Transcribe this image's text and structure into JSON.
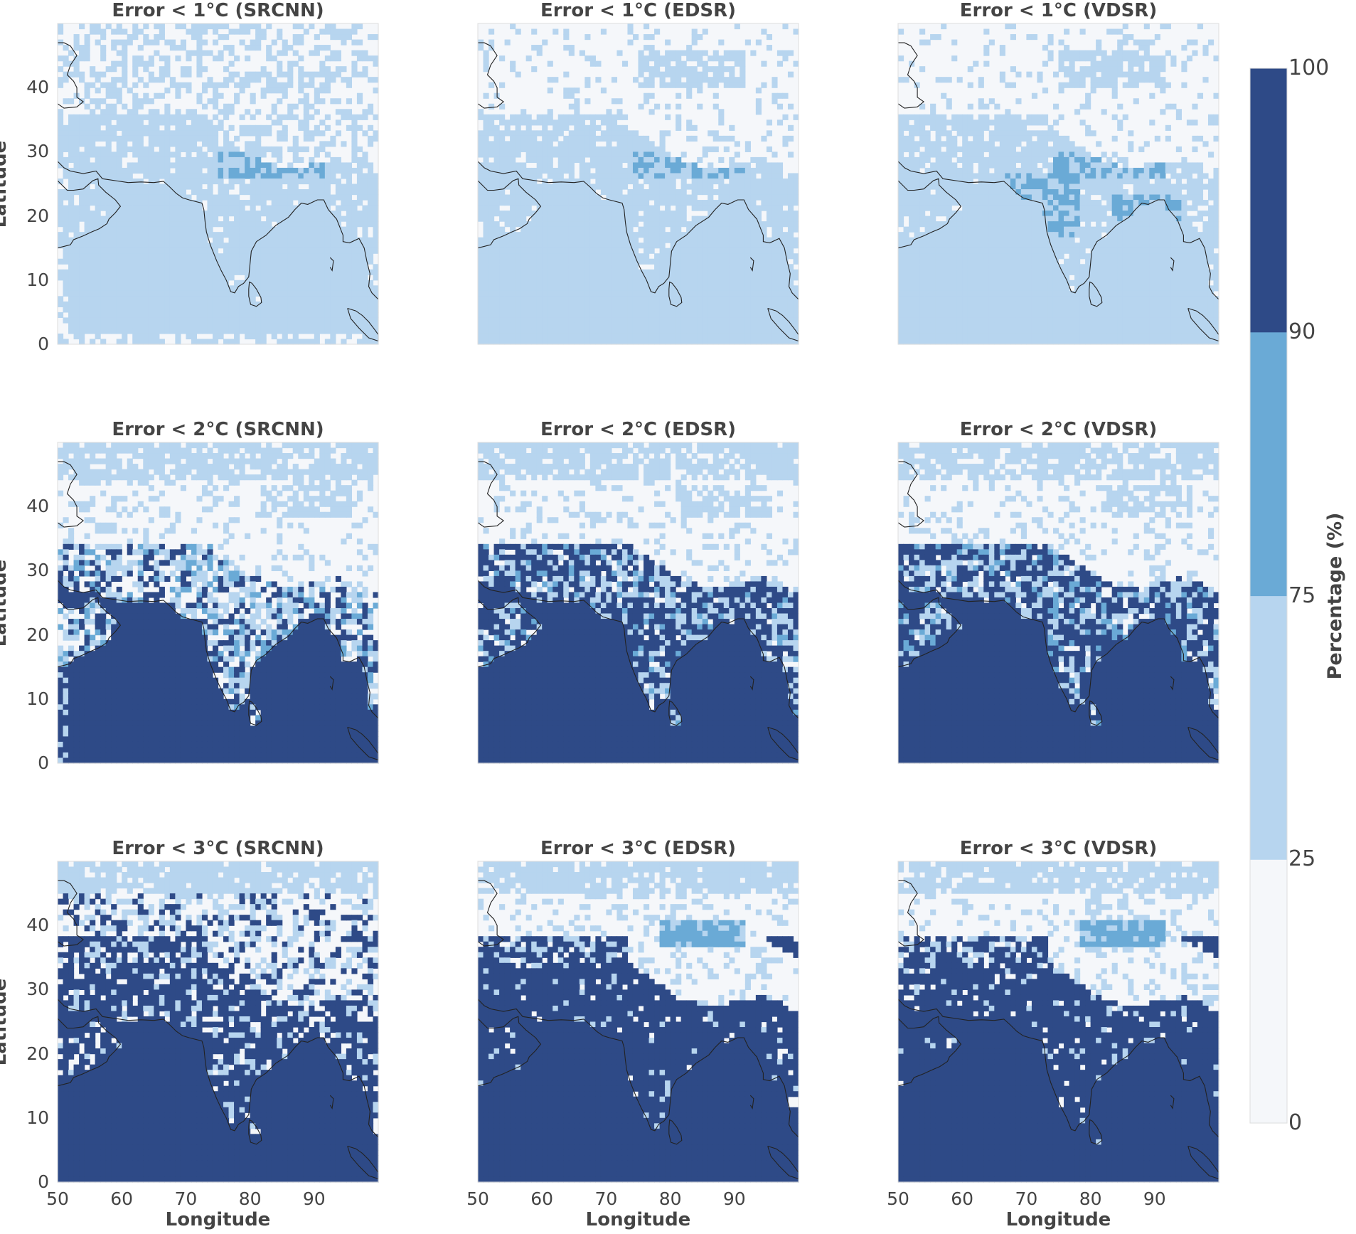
{
  "chart_data": {
    "type": "heatmap",
    "description_of_colormap": "discrete bins",
    "colorbar": {
      "label": "Percentage (%)",
      "bounds": [
        0,
        25,
        75,
        90,
        100
      ],
      "tick_labels": [
        "0",
        "25",
        "75",
        "90",
        "100"
      ],
      "colors": [
        "#f5f7fa",
        "#b7d5ef",
        "#6aaad6",
        "#2e4a87"
      ]
    },
    "xlabel": "Longitude",
    "ylabel": "Latitude",
    "xlim": [
      50,
      100
    ],
    "ylim": [
      0,
      50
    ],
    "xticks": [
      "50",
      "60",
      "70",
      "80",
      "90"
    ],
    "yticks": [
      "0",
      "10",
      "20",
      "30",
      "40"
    ],
    "panels": [
      {
        "title": "Error < 1°C (SRCNN)",
        "threshold": 1,
        "model": "SRCNN"
      },
      {
        "title": "Error < 1°C (EDSR)",
        "threshold": 1,
        "model": "EDSR"
      },
      {
        "title": "Error < 1°C (VDSR)",
        "threshold": 1,
        "model": "VDSR"
      },
      {
        "title": "Error < 2°C (SRCNN)",
        "threshold": 2,
        "model": "SRCNN"
      },
      {
        "title": "Error < 2°C (EDSR)",
        "threshold": 2,
        "model": "EDSR"
      },
      {
        "title": "Error < 2°C (VDSR)",
        "threshold": 2,
        "model": "VDSR"
      },
      {
        "title": "Error < 3°C (SRCNN)",
        "threshold": 3,
        "model": "SRCNN"
      },
      {
        "title": "Error < 3°C (EDSR)",
        "threshold": 3,
        "model": "EDSR"
      },
      {
        "title": "Error < 3°C (VDSR)",
        "threshold": 3,
        "model": "VDSR"
      }
    ]
  }
}
